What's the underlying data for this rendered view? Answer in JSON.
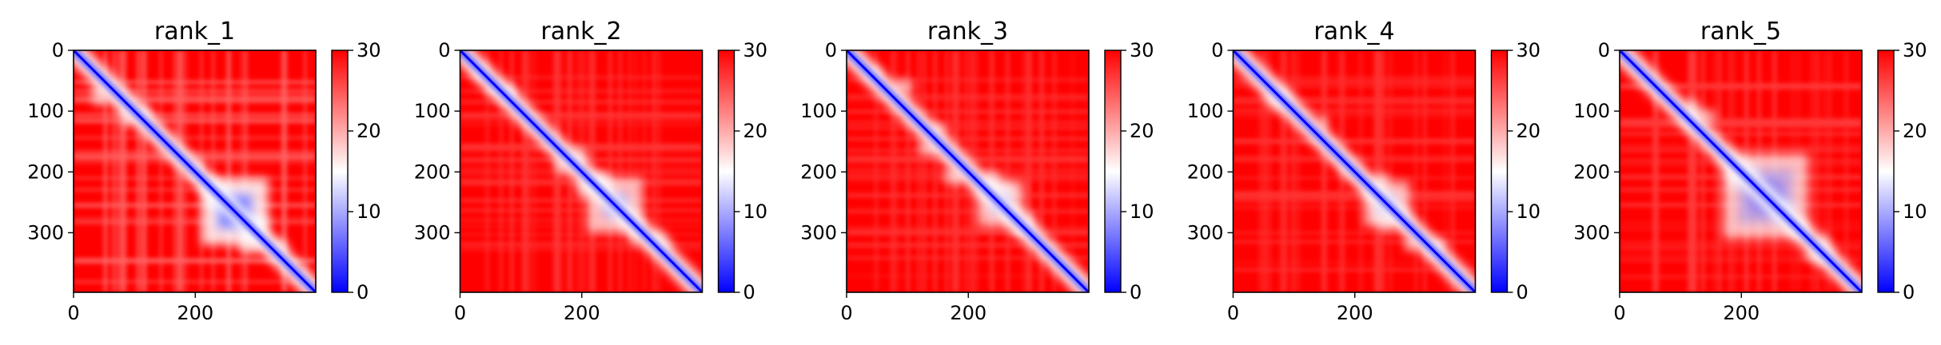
{
  "chart_data": [
    {
      "type": "heatmap",
      "title": "rank_1",
      "x_ticks": [
        "0",
        "200"
      ],
      "y_ticks": [
        "0",
        "100",
        "200",
        "300"
      ],
      "xlim": [
        0,
        398
      ],
      "ylim": [
        398,
        0
      ],
      "colorbar": {
        "ticks": [
          "0",
          "10",
          "20",
          "30"
        ],
        "range": [
          0,
          30
        ],
        "colormap": "bwr"
      },
      "low_block": [
        210,
        320
      ],
      "intensity": 1.0
    },
    {
      "type": "heatmap",
      "title": "rank_2",
      "x_ticks": [
        "0",
        "200"
      ],
      "y_ticks": [
        "0",
        "100",
        "200",
        "300"
      ],
      "xlim": [
        0,
        398
      ],
      "ylim": [
        398,
        0
      ],
      "colorbar": {
        "ticks": [
          "0",
          "10",
          "20",
          "30"
        ],
        "range": [
          0,
          30
        ],
        "colormap": "bwr"
      },
      "low_block": [
        210,
        300
      ],
      "intensity": 0.55
    },
    {
      "type": "heatmap",
      "title": "rank_3",
      "x_ticks": [
        "0",
        "200"
      ],
      "y_ticks": [
        "0",
        "100",
        "200",
        "300"
      ],
      "xlim": [
        0,
        398
      ],
      "ylim": [
        398,
        0
      ],
      "colorbar": {
        "ticks": [
          "0",
          "10",
          "20",
          "30"
        ],
        "range": [
          0,
          30
        ],
        "colormap": "bwr"
      },
      "low_block": [
        215,
        290
      ],
      "intensity": 0.5
    },
    {
      "type": "heatmap",
      "title": "rank_4",
      "x_ticks": [
        "0",
        "200"
      ],
      "y_ticks": [
        "0",
        "100",
        "200",
        "300"
      ],
      "xlim": [
        0,
        398
      ],
      "ylim": [
        398,
        0
      ],
      "colorbar": {
        "ticks": [
          "0",
          "10",
          "20",
          "30"
        ],
        "range": [
          0,
          30
        ],
        "colormap": "bwr"
      },
      "low_block": [
        215,
        290
      ],
      "intensity": 0.5
    },
    {
      "type": "heatmap",
      "title": "rank_5",
      "x_ticks": [
        "0",
        "200"
      ],
      "y_ticks": [
        "0",
        "100",
        "200",
        "300"
      ],
      "xlim": [
        0,
        398
      ],
      "ylim": [
        398,
        0
      ],
      "colorbar": {
        "ticks": [
          "0",
          "10",
          "20",
          "30"
        ],
        "range": [
          0,
          30
        ],
        "colormap": "bwr"
      },
      "low_block": [
        170,
        310
      ],
      "intensity": 0.55
    }
  ],
  "colors": {
    "high": "#ff0000",
    "mid": "#ffffff",
    "low": "#0000ff"
  }
}
